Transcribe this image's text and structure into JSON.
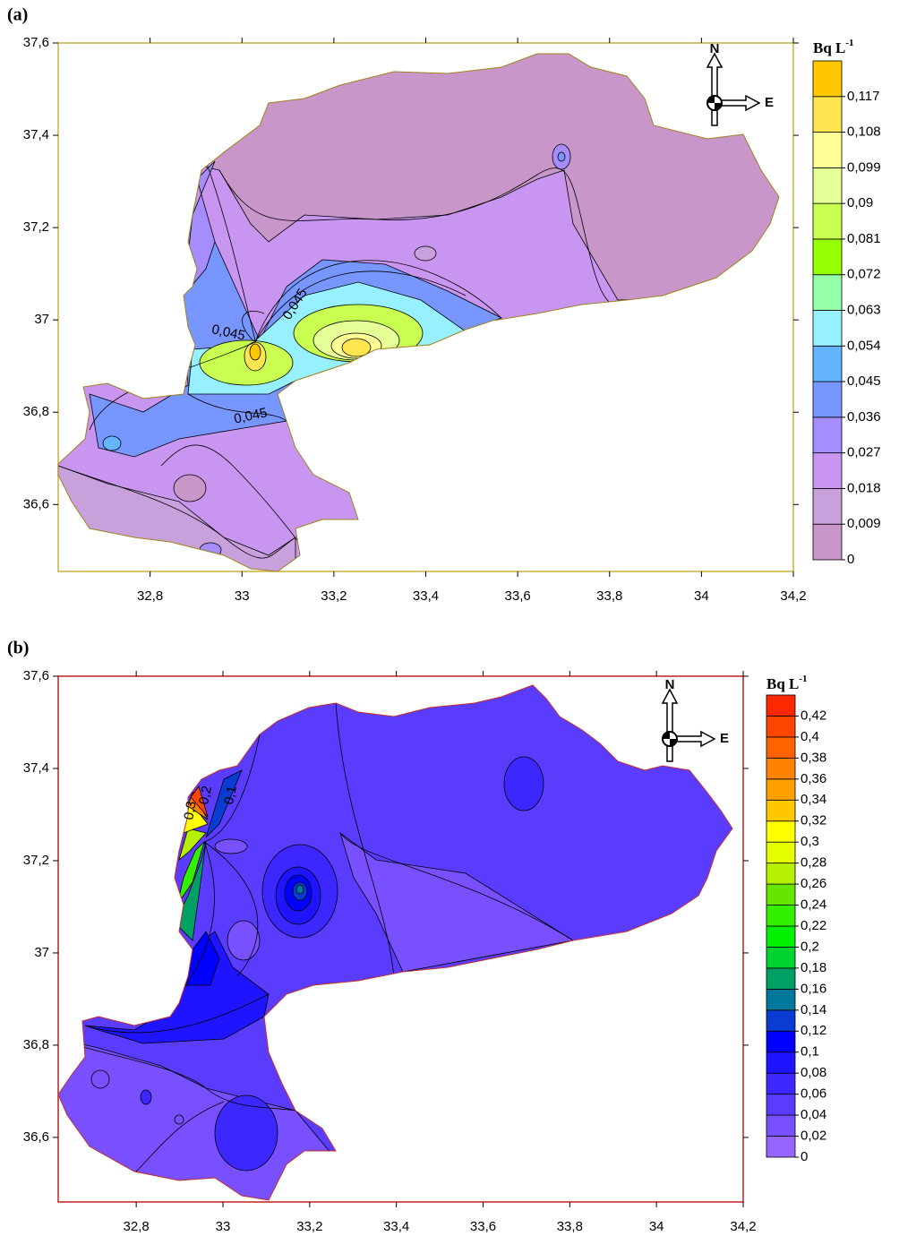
{
  "panels": [
    {
      "label": "(a)",
      "unit": "Bq L",
      "unit_exp": "-1",
      "xlim": [
        32.6,
        34.2
      ],
      "ylim": [
        36.455,
        37.6
      ],
      "xticks": [
        {
          "value": 32.8,
          "label": "32,8"
        },
        33,
        {
          "value": 33.2,
          "label": "33,2"
        },
        {
          "value": 33.4,
          "label": "33,4"
        },
        {
          "value": 33.6,
          "label": "33,6"
        },
        {
          "value": 33.8,
          "label": "33,8"
        },
        34,
        {
          "value": 34.2,
          "label": "34,2"
        }
      ],
      "yticks": [
        {
          "value": 36.6,
          "label": "36,6"
        },
        {
          "value": 36.8,
          "label": "36,8"
        },
        37,
        {
          "value": 37.2,
          "label": "37,2"
        },
        {
          "value": 37.4,
          "label": "37,4"
        },
        {
          "value": 37.6,
          "label": "37,6"
        }
      ],
      "colorbar": {
        "clim": [
          0,
          0.126
        ],
        "ticks": [
          0,
          {
            "value": 0.009,
            "label": "0,009"
          },
          {
            "value": 0.018,
            "label": "0,018"
          },
          {
            "value": 0.027,
            "label": "0,027"
          },
          {
            "value": 0.036,
            "label": "0,036"
          },
          {
            "value": 0.045,
            "label": "0,045"
          },
          {
            "value": 0.054,
            "label": "0,054"
          },
          {
            "value": 0.063,
            "label": "0,063"
          },
          {
            "value": 0.072,
            "label": "0,072"
          },
          {
            "value": 0.081,
            "label": "0,081"
          },
          {
            "value": 0.09,
            "label": "0,09"
          },
          {
            "value": 0.099,
            "label": "0,099"
          },
          {
            "value": 0.108,
            "label": "0,108"
          },
          {
            "value": 0.117,
            "label": "0,117"
          }
        ],
        "colors": [
          "#c896c8",
          "#c8a0dc",
          "#c896f0",
          "#a58cff",
          "#7896ff",
          "#64b4ff",
          "#96f0ff",
          "#96ffaa",
          "#96ff00",
          "#c8ff50",
          "#e6ff96",
          "#ffff96",
          "#ffe650",
          "#ffc800"
        ]
      },
      "contour_labels": [
        "0,045",
        "0,045",
        "0,045"
      ],
      "compass": {
        "n": "N",
        "e": "E"
      }
    },
    {
      "label": "(b)",
      "unit": "Bq L",
      "unit_exp": "-1",
      "xlim": [
        32.62,
        34.2
      ],
      "ylim": [
        36.46,
        37.6
      ],
      "xticks": [
        {
          "value": 32.8,
          "label": "32,8"
        },
        33,
        {
          "value": 33.2,
          "label": "33,2"
        },
        {
          "value": 33.4,
          "label": "33,4"
        },
        {
          "value": 33.6,
          "label": "33,6"
        },
        {
          "value": 33.8,
          "label": "33,8"
        },
        34,
        {
          "value": 34.2,
          "label": "34,2"
        }
      ],
      "yticks": [
        {
          "value": 36.6,
          "label": "36,6"
        },
        {
          "value": 36.8,
          "label": "36,8"
        },
        37,
        {
          "value": 37.2,
          "label": "37,2"
        },
        {
          "value": 37.4,
          "label": "37,4"
        },
        {
          "value": 37.6,
          "label": "37,6"
        }
      ],
      "colorbar": {
        "clim": [
          0,
          0.44
        ],
        "ticks": [
          0,
          {
            "value": 0.02,
            "label": "0,02"
          },
          {
            "value": 0.04,
            "label": "0,04"
          },
          {
            "value": 0.06,
            "label": "0,06"
          },
          {
            "value": 0.08,
            "label": "0,08"
          },
          {
            "value": 0.1,
            "label": "0,1"
          },
          {
            "value": 0.12,
            "label": "0,12"
          },
          {
            "value": 0.14,
            "label": "0,14"
          },
          {
            "value": 0.16,
            "label": "0,16"
          },
          {
            "value": 0.18,
            "label": "0,18"
          },
          {
            "value": 0.2,
            "label": "0,2"
          },
          {
            "value": 0.22,
            "label": "0,22"
          },
          {
            "value": 0.24,
            "label": "0,24"
          },
          {
            "value": 0.26,
            "label": "0,26"
          },
          {
            "value": 0.28,
            "label": "0,28"
          },
          {
            "value": 0.3,
            "label": "0,3"
          },
          {
            "value": 0.32,
            "label": "0,32"
          },
          {
            "value": 0.34,
            "label": "0,34"
          },
          {
            "value": 0.36,
            "label": "0,36"
          },
          {
            "value": 0.38,
            "label": "0,38"
          },
          {
            "value": 0.4,
            "label": "0,4"
          },
          {
            "value": 0.42,
            "label": "0,42"
          }
        ],
        "colors": [
          "#9664ff",
          "#7850ff",
          "#5a3cff",
          "#3c28ff",
          "#1e14ff",
          "#0000ff",
          "#0a3cd2",
          "#00789b",
          "#00a064",
          "#00d232",
          "#00f000",
          "#32f000",
          "#64e600",
          "#b4f000",
          "#e6ff00",
          "#ffff00",
          "#ffc800",
          "#ffa000",
          "#ff8200",
          "#ff6400",
          "#ff4600",
          "#ff2800"
        ]
      },
      "contour_labels": [
        "0,3",
        "0,2",
        "0,1"
      ],
      "compass": {
        "n": "N",
        "e": "E"
      }
    }
  ]
}
